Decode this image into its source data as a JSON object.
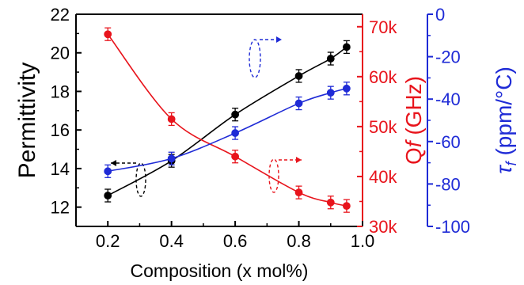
{
  "chart_data": {
    "type": "line",
    "xlabel": "Composition (x mol%)",
    "xlim": [
      0.1,
      1.0
    ],
    "xticks": [
      0.2,
      0.4,
      0.6,
      0.8,
      1.0
    ],
    "x": [
      0.2,
      0.4,
      0.6,
      0.8,
      0.9,
      0.95
    ],
    "axes": {
      "left": {
        "label": "Permittivity",
        "lim": [
          11,
          22
        ],
        "ticks": [
          12,
          14,
          16,
          18,
          20,
          22
        ],
        "color": "#000000"
      },
      "right1": {
        "label_prefix": "Q",
        "label_italic": "f",
        "label_suffix": " (GHz)",
        "lim": [
          30000,
          72500
        ],
        "ticks": [
          30000,
          40000,
          50000,
          60000,
          70000
        ],
        "tick_labels": [
          "30k",
          "40k",
          "50k",
          "60k",
          "70k"
        ],
        "color": "#e8141c"
      },
      "right2": {
        "label_symbol": "τ",
        "label_sub": "f",
        "label_suffix": " (ppm/°C)",
        "lim": [
          -100,
          0
        ],
        "ticks": [
          0,
          -20,
          -40,
          -60,
          -80,
          -100
        ],
        "tick_labels": [
          "0",
          "-20",
          "-40",
          "-60",
          "-80",
          "-100"
        ],
        "color": "#1f2bd6"
      }
    },
    "series": [
      {
        "axis": "left",
        "color": "#000000",
        "values": [
          12.6,
          14.4,
          16.8,
          18.8,
          19.7,
          20.3
        ]
      },
      {
        "axis": "right1",
        "color": "#e8141c",
        "values": [
          68500,
          51500,
          44000,
          36800,
          34800,
          34100
        ]
      },
      {
        "axis": "right2",
        "color": "#1f2bd6",
        "values": [
          -74,
          -68,
          -56,
          -42,
          -37,
          -35
        ]
      }
    ],
    "grid": false
  }
}
